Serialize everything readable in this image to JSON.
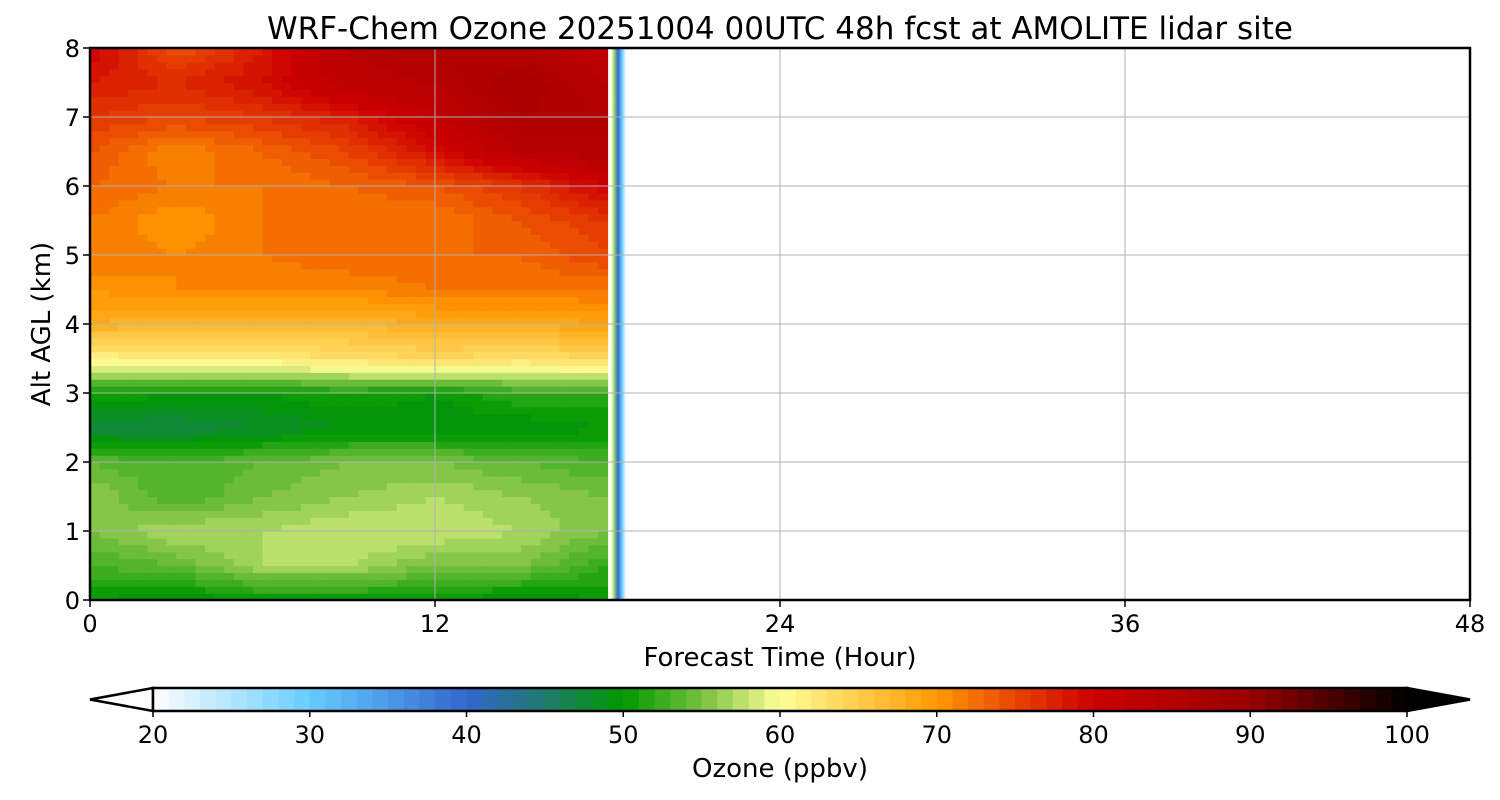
{
  "chart_data": {
    "type": "heatmap",
    "title": "WRF-Chem Ozone  20251004 00UTC 48h fcst at AMOLITE lidar site",
    "xlabel": "Forecast Time (Hour)",
    "ylabel": "Alt AGL (km)",
    "xlim": [
      0,
      48
    ],
    "ylim": [
      0,
      8
    ],
    "xticks": [
      "0",
      "12",
      "24",
      "36",
      "48"
    ],
    "yticks": [
      "0",
      "1",
      "2",
      "3",
      "4",
      "5",
      "6",
      "7",
      "8"
    ],
    "grid": true,
    "times": [
      0,
      3,
      6,
      9,
      12,
      15,
      18
    ],
    "altitudes": [
      0,
      0.5,
      1,
      1.5,
      2,
      2.5,
      3,
      3.5,
      4,
      4.5,
      5,
      5.5,
      6,
      6.5,
      7,
      7.5,
      8
    ],
    "values": [
      [
        50,
        49,
        50,
        50,
        50,
        49,
        50
      ],
      [
        53,
        54,
        57,
        57,
        55,
        55,
        52
      ],
      [
        55,
        57,
        57,
        58,
        58,
        57,
        55
      ],
      [
        56,
        53,
        55,
        56,
        57,
        56,
        55
      ],
      [
        54,
        53,
        54,
        55,
        55,
        54,
        53
      ],
      [
        47,
        47,
        48,
        49,
        49,
        49,
        50
      ],
      [
        51,
        50,
        50,
        51,
        50,
        52,
        52
      ],
      [
        61,
        62,
        62,
        63,
        64,
        63,
        64
      ],
      [
        68,
        67,
        67,
        67,
        68,
        68,
        69
      ],
      [
        70,
        71,
        71,
        71,
        72,
        72,
        72
      ],
      [
        72,
        71,
        72,
        73,
        73,
        73,
        75
      ],
      [
        72,
        70,
        72,
        72,
        72,
        74,
        76
      ],
      [
        73,
        72,
        72,
        73,
        74,
        76,
        80
      ],
      [
        74,
        71,
        73,
        75,
        79,
        84,
        85
      ],
      [
        76,
        75,
        76,
        78,
        82,
        86,
        85
      ],
      [
        78,
        77,
        79,
        83,
        84,
        87,
        84
      ],
      [
        80,
        74,
        78,
        84,
        86,
        85,
        82
      ]
    ],
    "colorbar": {
      "label": "Ozone  (ppbv)",
      "range": [
        20,
        100
      ],
      "step": 1,
      "ticks": [
        "20",
        "30",
        "40",
        "50",
        "60",
        "70",
        "80",
        "90",
        "100"
      ],
      "extend": "both",
      "color_stops": [
        [
          20,
          "#ffffff"
        ],
        [
          30,
          "#66ccff"
        ],
        [
          40,
          "#3366cc"
        ],
        [
          45,
          "#1f7a6e"
        ],
        [
          50,
          "#009900"
        ],
        [
          55,
          "#77c040"
        ],
        [
          60,
          "#ffff99"
        ],
        [
          70,
          "#ff9900"
        ],
        [
          75,
          "#e84400"
        ],
        [
          80,
          "#cc0000"
        ],
        [
          90,
          "#990000"
        ],
        [
          100,
          "#000000"
        ]
      ]
    }
  }
}
